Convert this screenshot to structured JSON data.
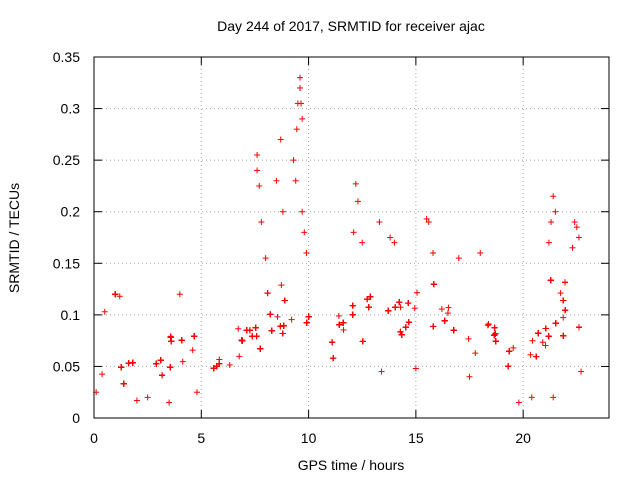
{
  "chart_data": {
    "type": "scatter",
    "title": "Day 244 of 2017, SRMTID for receiver ajac",
    "xlabel": "GPS time / hours",
    "ylabel": "SRMTID / TECUs",
    "xlim": [
      0,
      24
    ],
    "ylim": [
      0,
      0.35
    ],
    "xticks": [
      0,
      5,
      10,
      15,
      20
    ],
    "xtick_labels": [
      "0",
      "5",
      "10",
      "15",
      "20"
    ],
    "yticks": [
      0,
      0.05,
      0.1,
      0.15,
      0.2,
      0.25,
      0.3,
      0.35
    ],
    "ytick_labels": [
      "0",
      "0.05",
      "0.1",
      "0.15",
      "0.2",
      "0.25",
      "0.3",
      "0.35"
    ],
    "grid": true,
    "marker": "plus",
    "color": "#ff0000",
    "trend": [
      {
        "t": 0.0,
        "mean": 0.05,
        "spread": 0.02
      },
      {
        "t": 1.0,
        "mean": 0.056,
        "spread": 0.022
      },
      {
        "t": 2.0,
        "mean": 0.042,
        "spread": 0.017
      },
      {
        "t": 3.0,
        "mean": 0.05,
        "spread": 0.02
      },
      {
        "t": 4.0,
        "mean": 0.062,
        "spread": 0.025
      },
      {
        "t": 5.0,
        "mean": 0.044,
        "spread": 0.018
      },
      {
        "t": 6.0,
        "mean": 0.056,
        "spread": 0.02
      },
      {
        "t": 7.0,
        "mean": 0.072,
        "spread": 0.025
      },
      {
        "t": 8.0,
        "mean": 0.085,
        "spread": 0.03
      },
      {
        "t": 9.0,
        "mean": 0.095,
        "spread": 0.035
      },
      {
        "t": 10.0,
        "mean": 0.078,
        "spread": 0.028
      },
      {
        "t": 11.0,
        "mean": 0.068,
        "spread": 0.022
      },
      {
        "t": 12.0,
        "mean": 0.09,
        "spread": 0.03
      },
      {
        "t": 13.0,
        "mean": 0.1,
        "spread": 0.03
      },
      {
        "t": 14.0,
        "mean": 0.095,
        "spread": 0.03
      },
      {
        "t": 15.0,
        "mean": 0.09,
        "spread": 0.028
      },
      {
        "t": 16.0,
        "mean": 0.095,
        "spread": 0.03
      },
      {
        "t": 17.0,
        "mean": 0.08,
        "spread": 0.025
      },
      {
        "t": 18.0,
        "mean": 0.078,
        "spread": 0.025
      },
      {
        "t": 19.0,
        "mean": 0.068,
        "spread": 0.022
      },
      {
        "t": 20.0,
        "mean": 0.06,
        "spread": 0.02
      },
      {
        "t": 21.0,
        "mean": 0.085,
        "spread": 0.03
      },
      {
        "t": 22.0,
        "mean": 0.105,
        "spread": 0.035
      },
      {
        "t": 22.8,
        "mean": 0.09,
        "spread": 0.03
      }
    ],
    "peaks": [
      [
        7.6,
        0.255
      ],
      [
        7.6,
        0.24
      ],
      [
        7.7,
        0.225
      ],
      [
        7.8,
        0.19
      ],
      [
        8.0,
        0.155
      ],
      [
        8.5,
        0.23
      ],
      [
        8.7,
        0.27
      ],
      [
        8.8,
        0.2
      ],
      [
        9.3,
        0.25
      ],
      [
        9.4,
        0.23
      ],
      [
        9.45,
        0.28
      ],
      [
        9.5,
        0.305
      ],
      [
        9.6,
        0.33
      ],
      [
        9.6,
        0.32
      ],
      [
        9.65,
        0.305
      ],
      [
        9.7,
        0.29
      ],
      [
        9.7,
        0.2
      ],
      [
        9.8,
        0.18
      ],
      [
        9.9,
        0.16
      ],
      [
        12.2,
        0.227
      ],
      [
        12.3,
        0.21
      ],
      [
        12.1,
        0.18
      ],
      [
        12.5,
        0.17
      ],
      [
        13.3,
        0.19
      ],
      [
        13.8,
        0.175
      ],
      [
        14.0,
        0.17
      ],
      [
        15.5,
        0.193
      ],
      [
        15.6,
        0.19
      ],
      [
        15.8,
        0.16
      ],
      [
        17.0,
        0.155
      ],
      [
        18.0,
        0.16
      ],
      [
        21.4,
        0.215
      ],
      [
        21.5,
        0.2
      ],
      [
        21.3,
        0.19
      ],
      [
        21.2,
        0.17
      ],
      [
        22.4,
        0.19
      ],
      [
        22.5,
        0.185
      ],
      [
        22.6,
        0.175
      ],
      [
        22.3,
        0.165
      ],
      [
        1.2,
        0.118
      ],
      [
        4.0,
        0.12
      ],
      [
        0.5,
        0.103
      ]
    ],
    "lows": [
      [
        0.1,
        0.025
      ],
      [
        2.0,
        0.017
      ],
      [
        2.5,
        0.02
      ],
      [
        3.5,
        0.015
      ],
      [
        4.8,
        0.025
      ],
      [
        19.8,
        0.015
      ],
      [
        20.4,
        0.02
      ],
      [
        21.4,
        0.02
      ],
      [
        13.4,
        0.045
      ],
      [
        15.0,
        0.048
      ],
      [
        17.5,
        0.04
      ],
      [
        22.7,
        0.045
      ]
    ]
  }
}
